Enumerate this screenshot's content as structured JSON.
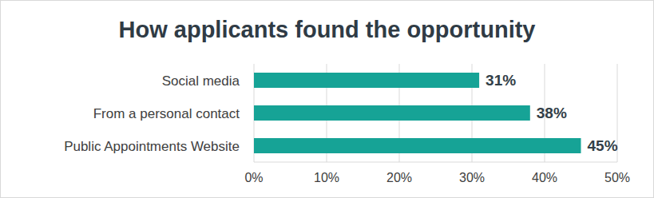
{
  "chart_data": {
    "type": "bar",
    "title": "How applicants found the opportunity",
    "orientation": "horizontal",
    "categories": [
      "Social media",
      "From a personal contact",
      "Public Appointments Website"
    ],
    "values": [
      31,
      38,
      45
    ],
    "value_labels": [
      "31%",
      "38%",
      "45%"
    ],
    "data_labels": true,
    "color": "#16a396",
    "xlim": [
      0,
      50
    ],
    "xticks": [
      {
        "value": 0,
        "label": "0%"
      },
      {
        "value": 10,
        "label": "10%"
      },
      {
        "value": 20,
        "label": "20%"
      },
      {
        "value": 30,
        "label": "30%"
      },
      {
        "value": 40,
        "label": "40%"
      },
      {
        "value": 50,
        "label": "50%"
      }
    ],
    "grid": true
  }
}
